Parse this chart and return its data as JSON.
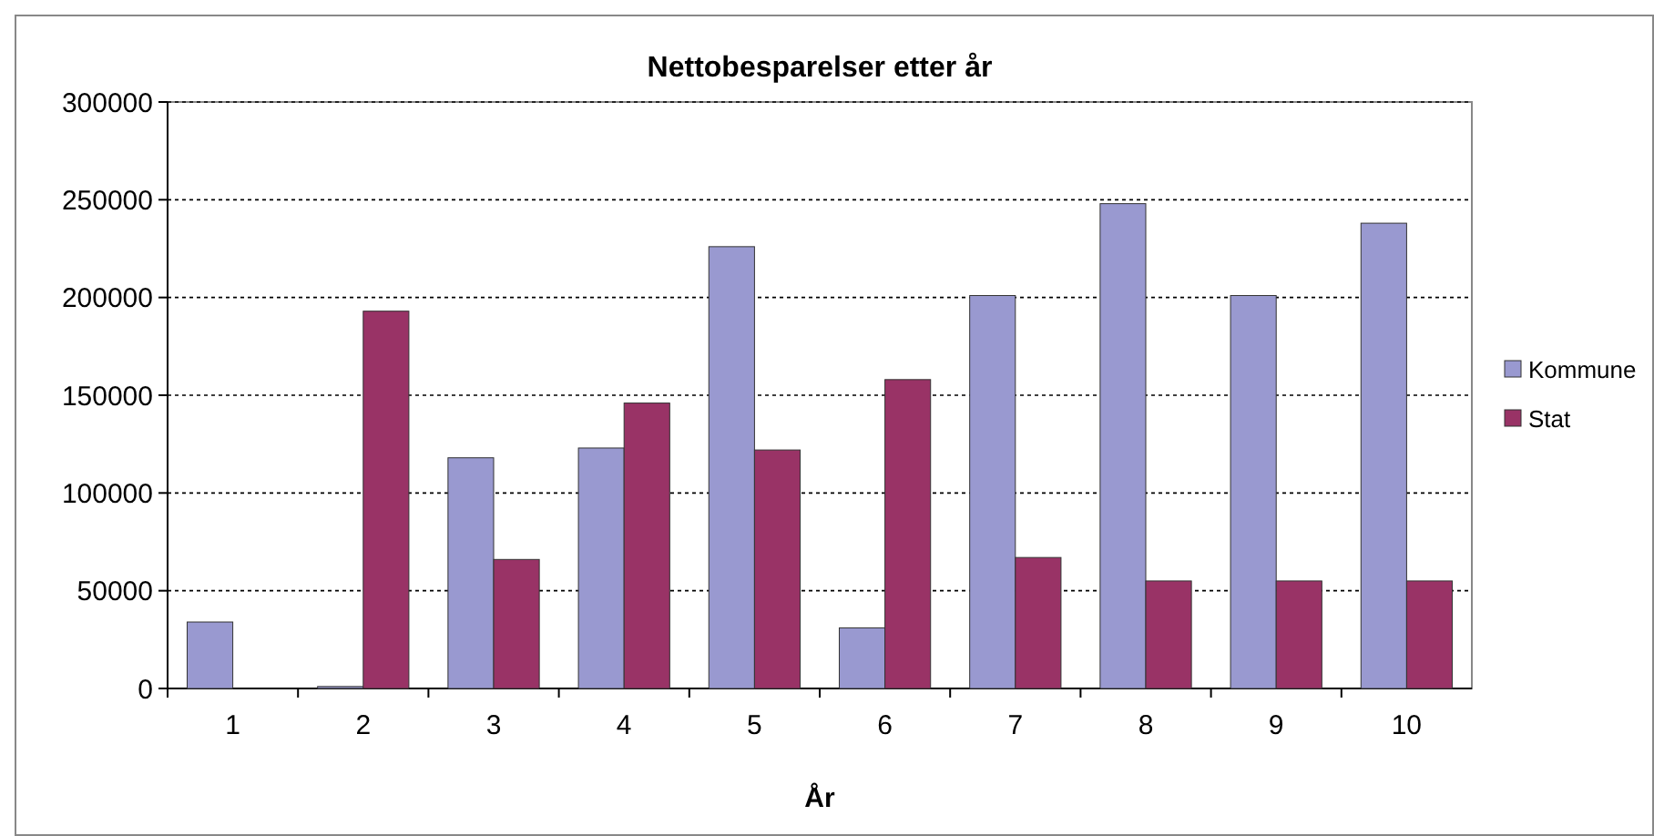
{
  "chart_data": {
    "type": "bar",
    "title": "Nettobesparelser etter år",
    "xlabel": "År",
    "categories": [
      "1",
      "2",
      "3",
      "4",
      "5",
      "6",
      "7",
      "8",
      "9",
      "10"
    ],
    "series": [
      {
        "name": "Kommune",
        "color": "#9999d0",
        "values": [
          34000,
          1000,
          118000,
          123000,
          226000,
          31000,
          201000,
          248000,
          201000,
          238000
        ]
      },
      {
        "name": "Stat",
        "color": "#993366",
        "values": [
          0,
          193000,
          66000,
          146000,
          122000,
          158000,
          67000,
          55000,
          55000,
          55000
        ]
      }
    ],
    "ylim": [
      0,
      300000
    ],
    "yticks": [
      0,
      50000,
      100000,
      150000,
      200000,
      250000,
      300000
    ],
    "grid": "y",
    "legend": "right"
  }
}
